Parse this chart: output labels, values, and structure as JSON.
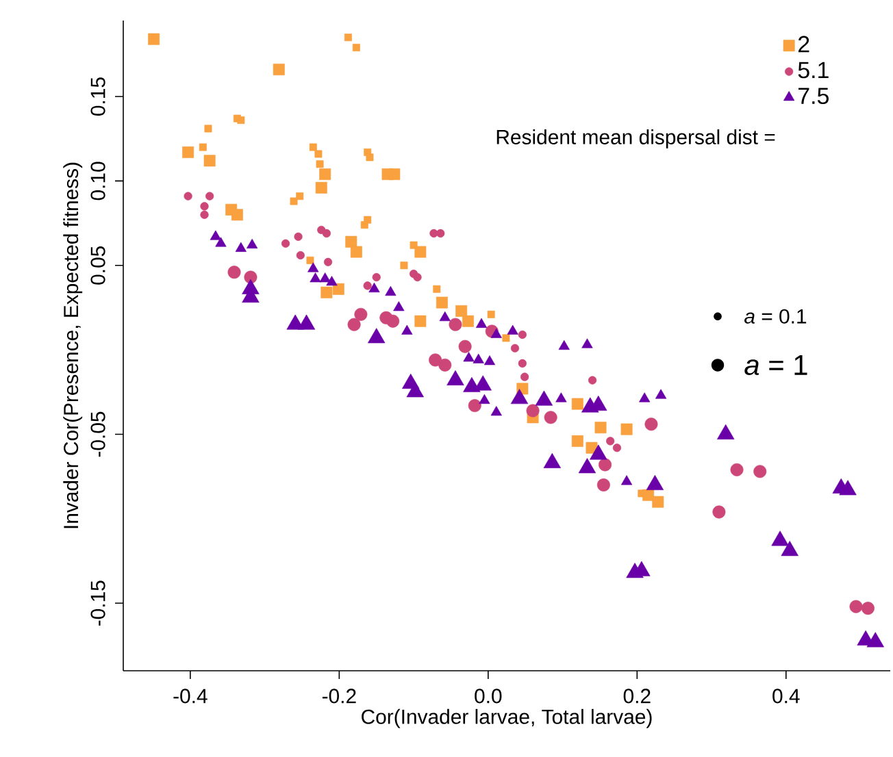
{
  "chart_data": {
    "type": "bubble",
    "xlabel": "Cor(Invader larvae, Total larvae)",
    "ylabel": "Invader Cor(Presence, Expected fitness)",
    "legend_title": "Resident mean dispersal dist =",
    "legend": "top right",
    "xlim": [
      -0.49,
      0.54
    ],
    "ylim": [
      -0.19,
      0.195
    ],
    "xticks": [
      -0.4,
      -0.2,
      {
        "value": 0,
        "label": "0.0"
      },
      0.2,
      0.4
    ],
    "yticks": [
      -0.15,
      -0.05,
      0.05,
      {
        "value": 0.1,
        "label": "0.10"
      },
      0.15
    ],
    "size_legend": [
      {
        "value": 0.4,
        "label": "*a* = 0.1"
      },
      {
        "value": 1,
        "label": "*a* = 1"
      }
    ],
    "series": [
      {
        "name": "2",
        "color": "#f9a03f",
        "marker": "square",
        "x": [
          -0.449,
          -0.188,
          -0.177,
          -0.281,
          -0.337,
          -0.332,
          -0.376,
          -0.403,
          -0.383,
          -0.374,
          -0.235,
          -0.228,
          -0.226,
          -0.219,
          -0.224,
          -0.253,
          -0.261,
          -0.345,
          -0.337,
          -0.162,
          -0.159,
          -0.135,
          -0.126,
          -0.162,
          -0.166,
          -0.184,
          -0.177,
          -0.239,
          -0.217,
          -0.201,
          -0.1,
          -0.091,
          -0.113,
          -0.069,
          -0.062,
          -0.036,
          0.004,
          -0.091,
          -0.027,
          0.024,
          0.046,
          0.06,
          0.12,
          0.151,
          0.186,
          0.12,
          0.139,
          0.206,
          0.215,
          0.228
        ],
        "values": [
          0.184,
          0.185,
          0.179,
          0.166,
          0.137,
          0.136,
          0.131,
          0.117,
          0.12,
          0.112,
          0.12,
          0.116,
          0.11,
          0.104,
          0.096,
          0.091,
          0.088,
          0.083,
          0.08,
          0.117,
          0.114,
          0.104,
          0.104,
          0.077,
          0.074,
          0.064,
          0.058,
          0.053,
          0.034,
          0.036,
          0.062,
          0.058,
          0.05,
          0.036,
          0.028,
          0.023,
          0.021,
          0.017,
          0.017,
          0.007,
          -0.023,
          -0.04,
          -0.032,
          -0.046,
          -0.047,
          -0.054,
          -0.058,
          -0.085,
          -0.086,
          -0.09
        ],
        "sizes": [
          1,
          0.4,
          0.4,
          1,
          0.4,
          0.4,
          0.4,
          1,
          0.4,
          1,
          0.4,
          0.4,
          0.4,
          1,
          1,
          0.4,
          0.4,
          1,
          1,
          0.4,
          0.4,
          1,
          1,
          0.4,
          0.4,
          1,
          1,
          0.4,
          1,
          1,
          0.4,
          1,
          0.4,
          0.4,
          1,
          1,
          0.4,
          1,
          1,
          0.4,
          1,
          1,
          1,
          1,
          1,
          1,
          1,
          0.4,
          1,
          1
        ]
      },
      {
        "name": "5.1",
        "color": "#cc4778",
        "marker": "circle",
        "x": [
          -0.403,
          -0.374,
          -0.381,
          -0.381,
          -0.224,
          -0.217,
          -0.272,
          -0.255,
          -0.252,
          -0.215,
          -0.341,
          -0.319,
          -0.15,
          -0.162,
          -0.171,
          -0.18,
          -0.137,
          -0.073,
          -0.064,
          -0.1,
          -0.095,
          -0.128,
          -0.044,
          0.005,
          0.046,
          -0.071,
          -0.058,
          -0.031,
          0.036,
          0.046,
          0.049,
          0.14,
          -0.018,
          0.06,
          0.084,
          0.164,
          0.173,
          0.157,
          0.155,
          0.219,
          0.334,
          0.365,
          0.31,
          0.494,
          0.51
        ],
        "values": [
          0.091,
          0.091,
          0.085,
          0.08,
          0.071,
          0.069,
          0.063,
          0.067,
          0.056,
          0.052,
          0.046,
          0.043,
          0.043,
          0.038,
          0.021,
          0.015,
          0.019,
          0.069,
          0.069,
          0.045,
          0.043,
          0.017,
          0.015,
          0.011,
          0.009,
          -0.006,
          -0.009,
          0.002,
          0.001,
          -0.008,
          -0.016,
          -0.018,
          -0.033,
          -0.036,
          -0.04,
          -0.054,
          -0.058,
          -0.068,
          -0.08,
          -0.044,
          -0.071,
          -0.072,
          -0.096,
          -0.152,
          -0.153
        ],
        "sizes": [
          0.4,
          0.4,
          0.4,
          0.4,
          0.4,
          0.4,
          0.4,
          0.4,
          0.4,
          0.4,
          1,
          1,
          0.4,
          0.4,
          1,
          1,
          1,
          0.4,
          0.4,
          0.4,
          0.4,
          1,
          1,
          1,
          0.4,
          1,
          1,
          1,
          0.4,
          0.4,
          0.4,
          0.4,
          1,
          1,
          1,
          0.4,
          0.4,
          1,
          1,
          1,
          1,
          1,
          1,
          1,
          1
        ]
      },
      {
        "name": "7.5",
        "color": "#6a00a8",
        "marker": "triangle",
        "x": [
          -0.366,
          -0.359,
          -0.332,
          -0.317,
          -0.319,
          -0.319,
          -0.235,
          -0.232,
          -0.219,
          -0.21,
          -0.259,
          -0.244,
          -0.153,
          -0.15,
          -0.131,
          -0.12,
          -0.058,
          -0.009,
          0.011,
          0.033,
          -0.109,
          0.102,
          0.133,
          -0.104,
          -0.098,
          -0.026,
          -0.013,
          0.002,
          -0.044,
          -0.022,
          -0.007,
          -0.005,
          0.011,
          0.042,
          0.075,
          0.098,
          0.137,
          0.148,
          0.086,
          0.133,
          0.148,
          0.186,
          0.197,
          0.21,
          0.232,
          0.319,
          0.224,
          0.206,
          0.474,
          0.483,
          0.392,
          0.405,
          0.507,
          0.52
        ],
        "values": [
          0.067,
          0.063,
          0.06,
          0.062,
          0.036,
          0.031,
          0.048,
          0.042,
          0.042,
          0.04,
          0.015,
          0.015,
          0.036,
          0.007,
          0.034,
          0.025,
          0.019,
          0.015,
          0.009,
          0.011,
          0.011,
          0.002,
          0.003,
          -0.02,
          -0.025,
          -0.005,
          -0.006,
          -0.007,
          -0.018,
          -0.022,
          -0.021,
          -0.03,
          -0.037,
          -0.029,
          -0.03,
          -0.029,
          -0.034,
          -0.033,
          -0.067,
          -0.07,
          -0.062,
          -0.078,
          -0.132,
          -0.029,
          -0.027,
          -0.05,
          -0.08,
          -0.131,
          -0.082,
          -0.083,
          -0.113,
          -0.119,
          -0.172,
          -0.173
        ],
        "sizes": [
          0.4,
          0.4,
          0.4,
          0.4,
          1,
          1,
          0.4,
          0.4,
          0.4,
          0.4,
          1,
          1,
          0.4,
          1,
          0.4,
          0.4,
          0.4,
          0.4,
          0.4,
          0.4,
          0.4,
          0.4,
          0.4,
          1,
          1,
          0.4,
          0.4,
          0.4,
          1,
          1,
          1,
          0.4,
          0.4,
          1,
          1,
          0.4,
          1,
          1,
          1,
          1,
          1,
          0.4,
          1,
          0.4,
          0.4,
          1,
          1,
          1,
          1,
          1,
          1,
          1,
          1,
          1
        ]
      }
    ]
  }
}
